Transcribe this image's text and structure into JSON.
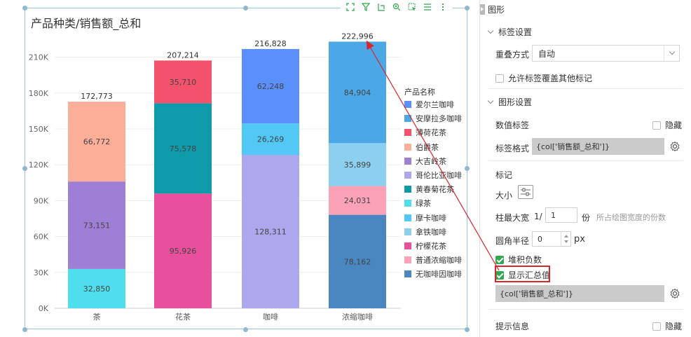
{
  "chart": {
    "title": "产品种类/销售额_总和",
    "legend_title": "产品名称"
  },
  "toolbar": {
    "icons": [
      "fullscreen-icon",
      "filter-icon",
      "drill-icon",
      "zoom-icon",
      "select-icon",
      "list-icon",
      "more-icon"
    ]
  },
  "chart_data": {
    "type": "bar",
    "stacked": true,
    "title": "产品种类/销售额_总和",
    "categories": [
      "茶",
      "花茶",
      "咖啡",
      "浓缩咖啡"
    ],
    "y_ticks": [
      "0K",
      "30K",
      "60K",
      "90K",
      "120K",
      "150K",
      "180K",
      "210K"
    ],
    "ylim": [
      0,
      225000
    ],
    "grid": true,
    "legend_position": "right",
    "series": [
      {
        "name": "爱尔兰咖啡",
        "color": "#5b8ff9",
        "values": [
          null,
          null,
          62248,
          null
        ]
      },
      {
        "name": "安摩拉多咖啡",
        "color": "#4ba7e6",
        "values": [
          null,
          null,
          null,
          84904
        ]
      },
      {
        "name": "薄荷花茶",
        "color": "#f4516c",
        "values": [
          null,
          35710,
          null,
          null
        ]
      },
      {
        "name": "伯爵茶",
        "color": "#fbae98",
        "values": [
          66772,
          null,
          null,
          null
        ]
      },
      {
        "name": "大吉岭茶",
        "color": "#9f7fd6",
        "values": [
          73151,
          null,
          null,
          null
        ]
      },
      {
        "name": "哥伦比亚咖啡",
        "color": "#ada7ee",
        "values": [
          null,
          null,
          128311,
          null
        ]
      },
      {
        "name": "黄春菊花茶",
        "color": "#0f9aaa",
        "values": [
          null,
          75578,
          null,
          null
        ]
      },
      {
        "name": "绿茶",
        "color": "#4fdfec",
        "values": [
          32850,
          null,
          null,
          null
        ]
      },
      {
        "name": "摩卡咖啡",
        "color": "#52c9f5",
        "values": [
          null,
          null,
          26269,
          null
        ]
      },
      {
        "name": "拿铁咖啡",
        "color": "#8ccfee",
        "values": [
          null,
          null,
          null,
          35899
        ]
      },
      {
        "name": "柠檬花茶",
        "color": "#e84f9d",
        "values": [
          null,
          95926,
          null,
          null
        ]
      },
      {
        "name": "普通浓缩咖啡",
        "color": "#fba2b7",
        "values": [
          null,
          null,
          null,
          24031
        ]
      },
      {
        "name": "无咖啡因咖啡",
        "color": "#4a86c0",
        "values": [
          null,
          null,
          null,
          78162
        ]
      }
    ],
    "stacks": [
      {
        "category": "茶",
        "segments": [
          {
            "series": "绿茶",
            "value": 32850,
            "label": "32,850"
          },
          {
            "series": "大吉岭茶",
            "value": 73151,
            "label": "73,151"
          },
          {
            "series": "伯爵茶",
            "value": 66772,
            "label": "66,772"
          }
        ],
        "total": "172,773"
      },
      {
        "category": "花茶",
        "segments": [
          {
            "series": "柠檬花茶",
            "value": 95926,
            "label": "95,926"
          },
          {
            "series": "黄春菊花茶",
            "value": 75578,
            "label": "75,578"
          },
          {
            "series": "薄荷花茶",
            "value": 35710,
            "label": "35,710"
          }
        ],
        "total": "207,214"
      },
      {
        "category": "咖啡",
        "segments": [
          {
            "series": "哥伦比亚咖啡",
            "value": 128311,
            "label": "128,311"
          },
          {
            "series": "摩卡咖啡",
            "value": 26269,
            "label": "26,269"
          },
          {
            "series": "爱尔兰咖啡",
            "value": 62248,
            "label": "62,248"
          }
        ],
        "total": "216,828"
      },
      {
        "category": "浓缩咖啡",
        "segments": [
          {
            "series": "无咖啡因咖啡",
            "value": 78162,
            "label": "78,162"
          },
          {
            "series": "普通浓缩咖啡",
            "value": 24031,
            "label": "24,031"
          },
          {
            "series": "拿铁咖啡",
            "value": 35899,
            "label": "35,899"
          },
          {
            "series": "安摩拉多咖啡",
            "value": 84904,
            "label": "84,904"
          }
        ],
        "total": "222,996"
      }
    ]
  },
  "panel": {
    "header": "图形",
    "label_section": "标签设置",
    "overlap_label": "重叠方式",
    "overlap_value": "自动",
    "allow_overlap_label": "允许标签覆盖其他标记",
    "shape_section": "图形设置",
    "value_label": "数值标签",
    "hide_label": "隐藏",
    "label_format_label": "标签格式",
    "label_format_value": "{col['销售额_总和']}",
    "mark_label": "标记",
    "size_label": "大小",
    "bar_width_label": "柱最大宽",
    "bar_width_prefix": "1/",
    "bar_width_value": "1",
    "bar_width_unit": "份",
    "bar_width_hint": "所占绘图宽度的份数",
    "radius_label": "圆角半径",
    "radius_value": "0",
    "radius_unit": "px",
    "stack_negative_label": "堆积负数",
    "show_total_label": "显示汇总值",
    "total_format_value": "{col['销售额_总和']}",
    "tooltip_label": "提示信息",
    "tooltip_hide_label": "隐藏"
  },
  "colors": {
    "accent_green": "#2fa84f",
    "highlight_red": "#d9262c",
    "frame_blue": "#9cc4d8"
  }
}
